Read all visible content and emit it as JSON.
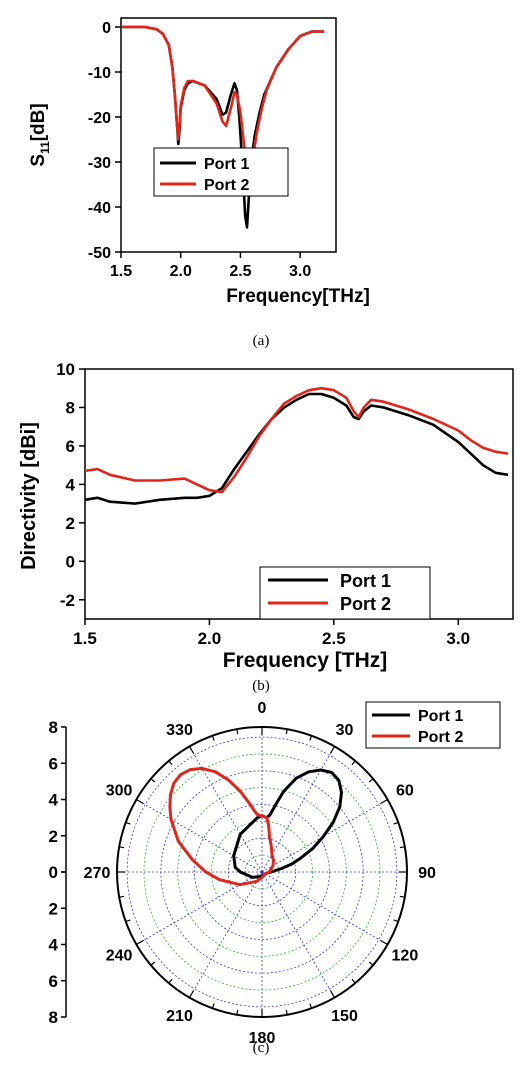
{
  "colors": {
    "port1": "#000000",
    "port2": "#e0251b",
    "grid_blue": "#3b3bd6",
    "grid_green": "#2bb52b"
  },
  "chart_data": [
    {
      "type": "line",
      "caption": "(a)",
      "xlabel": "Frequency[THz]",
      "ylabel_main": "S",
      "ylabel_sub": "11",
      "ylabel_unit": "[dB]",
      "xlim": [
        1.5,
        3.3
      ],
      "ylim": [
        -50,
        2
      ],
      "xticks": [
        "1.5",
        "2.0",
        "2.5",
        "3.0"
      ],
      "xtick_values": [
        1.5,
        2.0,
        2.5,
        3.0
      ],
      "yticks": [
        "0",
        "-10",
        "-20",
        "-30",
        "-40",
        "-50"
      ],
      "ytick_values": [
        0,
        -10,
        -20,
        -30,
        -40,
        -50
      ],
      "legend": [
        "Port 1",
        "Port 2"
      ],
      "series": [
        {
          "name": "Port 1",
          "x": [
            1.5,
            1.7,
            1.8,
            1.85,
            1.9,
            1.93,
            1.95,
            1.97,
            1.98,
            1.99,
            2.0,
            2.03,
            2.06,
            2.1,
            2.2,
            2.3,
            2.35,
            2.38,
            2.42,
            2.45,
            2.47,
            2.49,
            2.52,
            2.54,
            2.555,
            2.57,
            2.59,
            2.62,
            2.66,
            2.7,
            2.8,
            2.9,
            3.0,
            3.1,
            3.2
          ],
          "y": [
            0,
            0,
            -0.5,
            -1.5,
            -4,
            -9,
            -15,
            -22,
            -26,
            -23,
            -18,
            -14,
            -12.5,
            -12,
            -13,
            -16,
            -19.5,
            -19,
            -15,
            -12.5,
            -14,
            -20,
            -32,
            -42,
            -44.5,
            -38,
            -30,
            -24,
            -19,
            -15,
            -9,
            -5,
            -2,
            -1,
            -1
          ]
        },
        {
          "name": "Port 2",
          "x": [
            1.5,
            1.7,
            1.8,
            1.85,
            1.9,
            1.93,
            1.95,
            1.97,
            1.98,
            1.99,
            2.0,
            2.03,
            2.06,
            2.1,
            2.2,
            2.3,
            2.35,
            2.38,
            2.42,
            2.45,
            2.47,
            2.5,
            2.53,
            2.56,
            2.575,
            2.59,
            2.61,
            2.64,
            2.68,
            2.72,
            2.8,
            2.9,
            3.0,
            3.1,
            3.2
          ],
          "y": [
            0,
            0,
            -0.5,
            -1.5,
            -4,
            -9,
            -15,
            -22,
            -25,
            -22,
            -17.5,
            -13.5,
            -12,
            -12,
            -13,
            -17,
            -21,
            -22,
            -18,
            -14.5,
            -15,
            -19,
            -26,
            -33,
            -37,
            -34,
            -28,
            -23,
            -18,
            -14,
            -9,
            -5,
            -2,
            -1,
            -1
          ]
        }
      ]
    },
    {
      "type": "line",
      "caption": "(b)",
      "xlabel": "Frequency [THz]",
      "ylabel": "Directivity [dBi]",
      "xlim": [
        1.5,
        3.22
      ],
      "ylim": [
        -3,
        10
      ],
      "xticks": [
        "1.5",
        "2.0",
        "2.5",
        "3.0"
      ],
      "xtick_values": [
        1.5,
        2.0,
        2.5,
        3.0
      ],
      "yticks": [
        "10",
        "8",
        "6",
        "4",
        "2",
        "0",
        "-2"
      ],
      "ytick_values": [
        10,
        8,
        6,
        4,
        2,
        0,
        -2
      ],
      "legend": [
        "Port 1",
        "Port 2"
      ],
      "series": [
        {
          "name": "Port 1",
          "x": [
            1.5,
            1.55,
            1.6,
            1.7,
            1.8,
            1.9,
            1.95,
            2.0,
            2.05,
            2.1,
            2.15,
            2.2,
            2.25,
            2.3,
            2.35,
            2.4,
            2.45,
            2.5,
            2.55,
            2.58,
            2.6,
            2.62,
            2.65,
            2.7,
            2.8,
            2.9,
            3.0,
            3.05,
            3.1,
            3.15,
            3.2
          ],
          "y": [
            3.2,
            3.3,
            3.1,
            3.0,
            3.2,
            3.3,
            3.3,
            3.4,
            3.8,
            4.8,
            5.7,
            6.6,
            7.4,
            8.0,
            8.4,
            8.7,
            8.7,
            8.5,
            8.1,
            7.5,
            7.4,
            7.8,
            8.1,
            8.0,
            7.6,
            7.1,
            6.2,
            5.6,
            5.0,
            4.6,
            4.5
          ]
        },
        {
          "name": "Port 2",
          "x": [
            1.5,
            1.55,
            1.6,
            1.7,
            1.8,
            1.9,
            1.95,
            2.0,
            2.05,
            2.1,
            2.15,
            2.2,
            2.25,
            2.3,
            2.35,
            2.4,
            2.45,
            2.5,
            2.55,
            2.58,
            2.6,
            2.62,
            2.65,
            2.7,
            2.8,
            2.9,
            3.0,
            3.05,
            3.1,
            3.15,
            3.2
          ],
          "y": [
            4.7,
            4.8,
            4.5,
            4.2,
            4.2,
            4.3,
            4.0,
            3.7,
            3.6,
            4.4,
            5.4,
            6.5,
            7.4,
            8.2,
            8.6,
            8.9,
            9.0,
            8.9,
            8.5,
            7.8,
            7.5,
            8.0,
            8.4,
            8.3,
            7.9,
            7.4,
            6.8,
            6.3,
            5.9,
            5.7,
            5.6
          ]
        }
      ]
    },
    {
      "type": "polar",
      "caption": "(c)",
      "angle_labels": [
        "0",
        "30",
        "60",
        "90",
        "120",
        "150",
        "180",
        "210",
        "240",
        "270",
        "300",
        "330"
      ],
      "angle_values": [
        0,
        30,
        60,
        90,
        120,
        150,
        180,
        210,
        240,
        270,
        300,
        330
      ],
      "r_ticks_upper": [
        "8",
        "6",
        "4",
        "2",
        "0"
      ],
      "r_ticks_lower": [
        "0",
        "2",
        "4",
        "6",
        "8"
      ],
      "r_tick_values": [
        8,
        6,
        4,
        2,
        0
      ],
      "rmax": 8,
      "legend": [
        "Port 1",
        "Port 2"
      ],
      "series": [
        {
          "name": "Port 1",
          "theta": [
            0,
            5,
            8,
            12,
            15,
            18,
            20,
            25,
            30,
            35,
            40,
            45,
            50,
            55,
            60,
            65,
            70,
            75,
            80,
            90,
            100,
            110,
            120,
            150,
            180,
            210,
            240,
            270,
            280,
            300,
            330,
            355
          ],
          "r": [
            3.1,
            3.0,
            3.2,
            3.9,
            4.6,
            5.1,
            5.5,
            6.1,
            6.5,
            6.7,
            6.6,
            6.2,
            5.6,
            4.8,
            3.9,
            3.1,
            2.3,
            1.7,
            1.1,
            0.5,
            0.3,
            0.25,
            0.2,
            0.2,
            0.2,
            0.3,
            0.6,
            1.2,
            1.5,
            1.8,
            2.4,
            3.0
          ]
        },
        {
          "name": "Port 2",
          "theta": [
            0,
            5,
            8,
            12,
            20,
            30,
            45,
            60,
            90,
            120,
            150,
            180,
            210,
            240,
            260,
            270,
            280,
            290,
            300,
            305,
            310,
            315,
            320,
            325,
            330,
            335,
            340,
            345,
            350,
            352,
            355,
            358
          ],
          "r": [
            3.1,
            3.0,
            2.6,
            2.0,
            1.5,
            1.1,
            0.9,
            0.7,
            0.4,
            0.2,
            0.2,
            0.3,
            0.6,
            1.4,
            2.4,
            3.1,
            3.9,
            4.9,
            5.8,
            6.2,
            6.6,
            6.9,
            7.0,
            6.9,
            6.6,
            6.1,
            5.4,
            4.6,
            3.8,
            3.5,
            3.2,
            3.1
          ]
        }
      ]
    }
  ]
}
